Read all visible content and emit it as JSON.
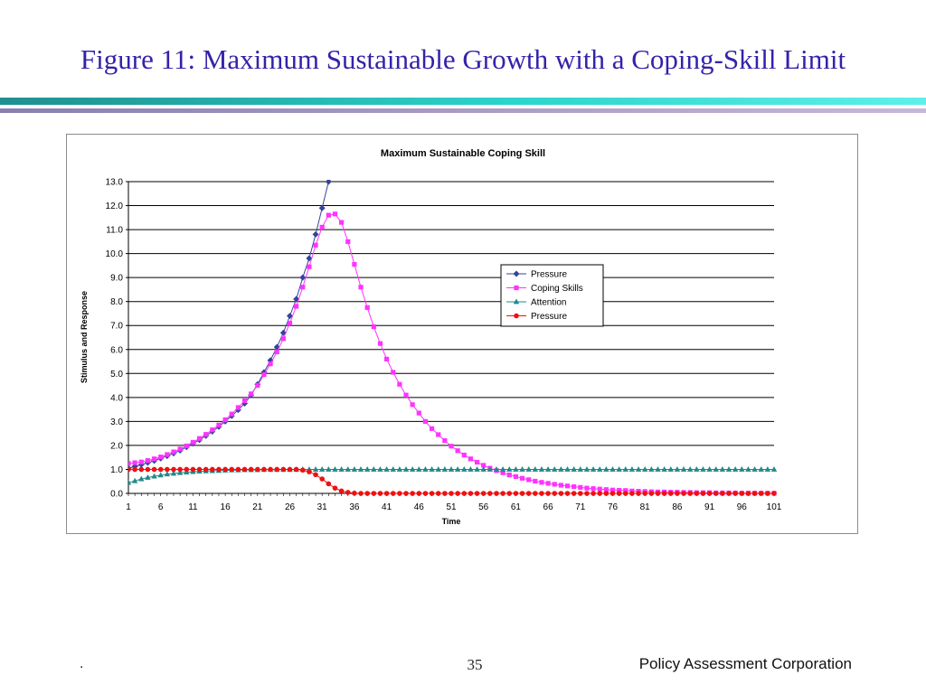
{
  "slide": {
    "title": "Figure 11:  Maximum Sustainable Growth with a Coping-Skill Limit",
    "footer_left": ".",
    "page_number": "35",
    "company": "Policy Assessment Corporation"
  },
  "colors": {
    "title": "#3322aa",
    "pressure_blue": "#334499",
    "coping_skills": "#ff33ff",
    "attention": "#228888",
    "pressure_red": "#ee1111",
    "gridline": "#000000"
  },
  "chart_data": {
    "type": "line",
    "title": "Maximum Sustainable Coping Skill",
    "xlabel": "Time",
    "ylabel": "Stimulus and Response",
    "xlim": [
      1,
      101
    ],
    "ylim": [
      0,
      13
    ],
    "x_ticks": [
      "1",
      "6",
      "11",
      "16",
      "21",
      "26",
      "31",
      "36",
      "41",
      "46",
      "51",
      "56",
      "61",
      "66",
      "71",
      "76",
      "81",
      "86",
      "91",
      "96",
      "101"
    ],
    "y_ticks": [
      "0.0",
      "1.0",
      "2.0",
      "3.0",
      "4.0",
      "5.0",
      "6.0",
      "7.0",
      "8.0",
      "9.0",
      "10.0",
      "11.0",
      "12.0",
      "13.0"
    ],
    "grid": "horizontal",
    "legend_position": "center-right",
    "series": [
      {
        "name": "Pressure",
        "color": "#334499",
        "marker": "diamond",
        "x_start": 1,
        "values": [
          1.05,
          1.12,
          1.2,
          1.28,
          1.36,
          1.46,
          1.56,
          1.67,
          1.79,
          1.93,
          2.08,
          2.23,
          2.4,
          2.58,
          2.78,
          3.0,
          3.23,
          3.48,
          3.75,
          4.1,
          4.55,
          5.05,
          5.55,
          6.1,
          6.7,
          7.4,
          8.1,
          9.0,
          9.8,
          10.8,
          11.9,
          13.0
        ]
      },
      {
        "name": "Coping Skills",
        "color": "#ff33ff",
        "marker": "square",
        "x_start": 1,
        "values": [
          1.25,
          1.28,
          1.31,
          1.37,
          1.44,
          1.52,
          1.62,
          1.73,
          1.85,
          1.98,
          2.13,
          2.29,
          2.46,
          2.65,
          2.85,
          3.07,
          3.31,
          3.58,
          3.86,
          4.15,
          4.5,
          4.95,
          5.4,
          5.9,
          6.45,
          7.1,
          7.8,
          8.6,
          9.45,
          10.35,
          11.1,
          11.6,
          11.65,
          11.3,
          10.5,
          9.55,
          8.6,
          7.75,
          6.95,
          6.25,
          5.6,
          5.05,
          4.55,
          4.1,
          3.7,
          3.35,
          3.0,
          2.7,
          2.45,
          2.2,
          1.97,
          1.78,
          1.6,
          1.44,
          1.3,
          1.17,
          1.05,
          0.95,
          0.86,
          0.77,
          0.7,
          0.63,
          0.57,
          0.51,
          0.46,
          0.42,
          0.38,
          0.34,
          0.31,
          0.28,
          0.25,
          0.22,
          0.2,
          0.18,
          0.16,
          0.14,
          0.13,
          0.12,
          0.1,
          0.09,
          0.08,
          0.07,
          0.06,
          0.06,
          0.05,
          0.05,
          0.04,
          0.04,
          0.03,
          0.03,
          0.03,
          0.02,
          0.02,
          0.02,
          0.02,
          0.01,
          0.01,
          0.01,
          0.01,
          0.01,
          0.01
        ]
      },
      {
        "name": "Attention",
        "color": "#228888",
        "marker": "triangle",
        "x_start": 1,
        "values": [
          0.45,
          0.52,
          0.6,
          0.66,
          0.71,
          0.76,
          0.8,
          0.83,
          0.86,
          0.88,
          0.9,
          0.92,
          0.93,
          0.94,
          0.95,
          0.96,
          0.97,
          0.97,
          0.98,
          0.98,
          0.98,
          0.99,
          0.99,
          0.99,
          0.99,
          0.99,
          0.99,
          1.0,
          1.0,
          1.0,
          1.0,
          1.0,
          1.0,
          1.0,
          1.0,
          1.0,
          1.0,
          1.0,
          1.0,
          1.0,
          1.0,
          1.0,
          1.0,
          1.0,
          1.0,
          1.0,
          1.0,
          1.0,
          1.0,
          1.0,
          1.0,
          1.0,
          1.0,
          1.0,
          1.0,
          1.0,
          1.0,
          1.0,
          1.0,
          1.0,
          1.0,
          1.0,
          1.0,
          1.0,
          1.0,
          1.0,
          1.0,
          1.0,
          1.0,
          1.0,
          1.0,
          1.0,
          1.0,
          1.0,
          1.0,
          1.0,
          1.0,
          1.0,
          1.0,
          1.0,
          1.0,
          1.0,
          1.0,
          1.0,
          1.0,
          1.0,
          1.0,
          1.0,
          1.0,
          1.0,
          1.0,
          1.0,
          1.0,
          1.0,
          1.0,
          1.0,
          1.0,
          1.0,
          1.0,
          1.0,
          1.0
        ]
      },
      {
        "name": "Pressure",
        "color": "#ee1111",
        "marker": "circle",
        "x_start": 1,
        "values": [
          1.0,
          1.0,
          1.0,
          1.0,
          1.0,
          1.0,
          1.0,
          1.0,
          1.0,
          1.0,
          1.0,
          1.0,
          1.0,
          1.0,
          1.0,
          1.0,
          1.0,
          1.0,
          1.0,
          1.0,
          1.0,
          1.0,
          1.0,
          1.0,
          1.0,
          1.0,
          1.0,
          0.97,
          0.9,
          0.78,
          0.6,
          0.4,
          0.22,
          0.1,
          0.04,
          0.01,
          0.0,
          0.0,
          0.0,
          0.0,
          0.0,
          0.0,
          0.0,
          0.0,
          0.0,
          0.0,
          0.0,
          0.0,
          0.0,
          0.0,
          0.0,
          0.0,
          0.0,
          0.0,
          0.0,
          0.0,
          0.0,
          0.0,
          0.0,
          0.0,
          0.0,
          0.0,
          0.0,
          0.0,
          0.0,
          0.0,
          0.0,
          0.0,
          0.0,
          0.0,
          0.0,
          0.0,
          0.0,
          0.0,
          0.0,
          0.0,
          0.0,
          0.0,
          0.0,
          0.0,
          0.0,
          0.0,
          0.0,
          0.0,
          0.0,
          0.0,
          0.0,
          0.0,
          0.0,
          0.0,
          0.0,
          0.0,
          0.0,
          0.0,
          0.0,
          0.0,
          0.0,
          0.0,
          0.0,
          0.0,
          0.0
        ]
      }
    ]
  }
}
